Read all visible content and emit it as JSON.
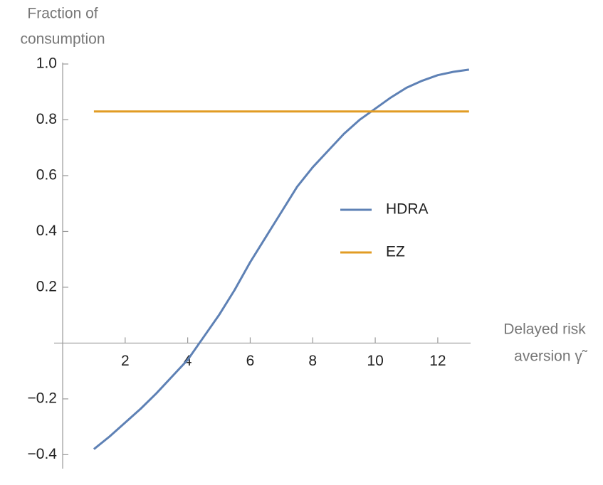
{
  "chart_data": {
    "type": "line",
    "ylabel": [
      "Fraction of",
      "consumption"
    ],
    "xlabel": [
      "Delayed risk",
      "aversion γ̃"
    ],
    "x": [
      1,
      1.5,
      2,
      2.5,
      3,
      3.5,
      4,
      4.5,
      5,
      5.5,
      6,
      6.5,
      7,
      7.5,
      8,
      8.5,
      9,
      9.5,
      10,
      10.5,
      11,
      11.5,
      12,
      12.5,
      13
    ],
    "series": [
      {
        "name": "HDRA",
        "color": "#5e81b5",
        "values": [
          -0.38,
          -0.335,
          -0.285,
          -0.235,
          -0.18,
          -0.12,
          -0.06,
          0.02,
          0.1,
          0.19,
          0.29,
          0.38,
          0.47,
          0.56,
          0.63,
          0.69,
          0.75,
          0.8,
          0.84,
          0.88,
          0.915,
          0.94,
          0.96,
          0.972,
          0.98
        ]
      },
      {
        "name": "EZ",
        "color": "#e19c24",
        "values": [
          0.83,
          0.83,
          0.83,
          0.83,
          0.83,
          0.83,
          0.83,
          0.83,
          0.83,
          0.83,
          0.83,
          0.83,
          0.83,
          0.83,
          0.83,
          0.83,
          0.83,
          0.83,
          0.83,
          0.83,
          0.83,
          0.83,
          0.83,
          0.83,
          0.83
        ]
      }
    ],
    "xlim": [
      0,
      13.05
    ],
    "ylim": [
      -0.45,
      1.0
    ],
    "xticks": [
      2,
      4,
      6,
      8,
      10,
      12
    ],
    "yticks": [
      {
        "value": -0.4,
        "label": "−0.4"
      },
      {
        "value": -0.2,
        "label": "−0.2"
      },
      0.2,
      0.4,
      0.6,
      {
        "value": 0.8,
        "label": "0.8"
      },
      {
        "value": 1,
        "label": "1.0"
      }
    ],
    "legend": "right"
  }
}
